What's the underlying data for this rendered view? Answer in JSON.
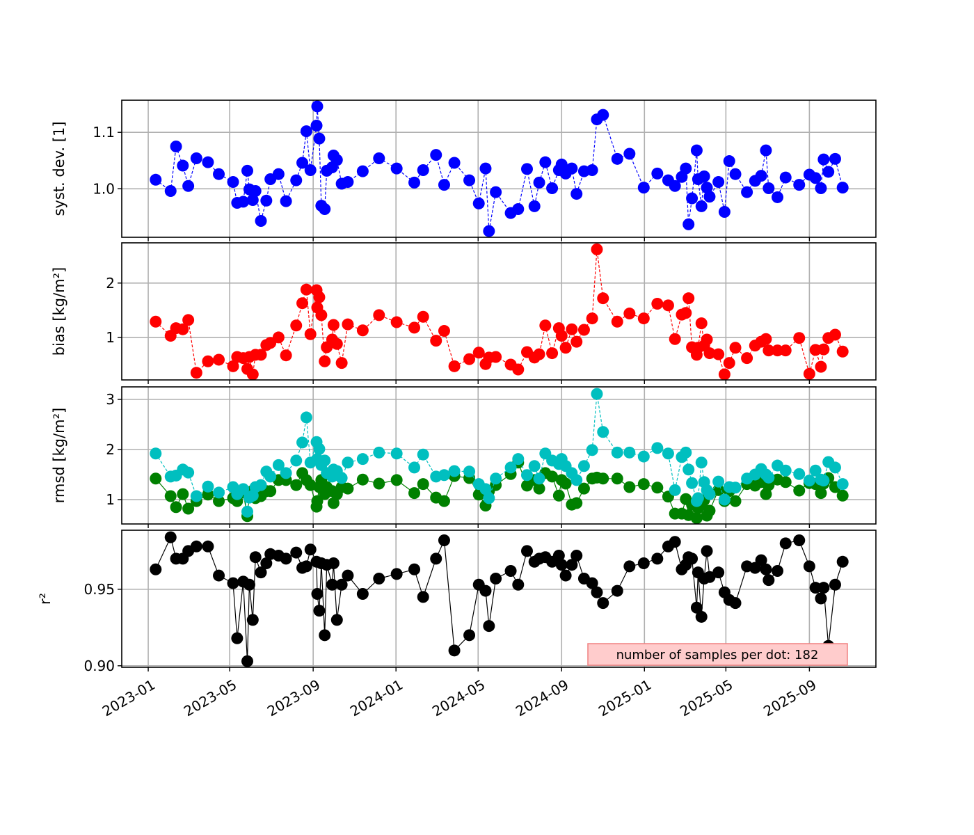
{
  "chart_data": {
    "type": "line",
    "x_unit": "days since 2023-01-01",
    "x_ticks": [
      {
        "day": 0,
        "label": "2023-01"
      },
      {
        "day": 120,
        "label": "2023-05"
      },
      {
        "day": 243,
        "label": "2023-09"
      },
      {
        "day": 365,
        "label": "2024-01"
      },
      {
        "day": 486,
        "label": "2024-05"
      },
      {
        "day": 609,
        "label": "2024-09"
      },
      {
        "day": 731,
        "label": "2025-01"
      },
      {
        "day": 851,
        "label": "2025-05"
      },
      {
        "day": 974,
        "label": "2025-09"
      }
    ],
    "xlim": [
      -39,
      1072
    ],
    "grid": true,
    "x": [
      11,
      33,
      41,
      51,
      59,
      71,
      88,
      104,
      125,
      131,
      140,
      146,
      149,
      154,
      158,
      166,
      174,
      180,
      192,
      203,
      218,
      227,
      233,
      239,
      248,
      249,
      252,
      255,
      260,
      263,
      271,
      273,
      278,
      285,
      294,
      316,
      340,
      366,
      392,
      405,
      424,
      436,
      451,
      473,
      487,
      497,
      502,
      512,
      534,
      545,
      558,
      569,
      576,
      585,
      595,
      605,
      609,
      615,
      624,
      631,
      642,
      654,
      661,
      670,
      691,
      709,
      730,
      750,
      766,
      776,
      786,
      792,
      796,
      801,
      808,
      810,
      815,
      819,
      823,
      827,
      840,
      849,
      856,
      865,
      882,
      894,
      903,
      910,
      914,
      927,
      939,
      959,
      974,
      983,
      991,
      995,
      1002,
      1012,
      1023
    ],
    "panels": [
      {
        "ylabel": "syst. dev. [1]",
        "ylim": [
          0.914,
          1.157
        ],
        "yticks": [
          {
            "v": 1.0,
            "label": "1.0"
          },
          {
            "v": 1.1,
            "label": "1.1"
          }
        ],
        "series": [
          {
            "name": "syst. dev.",
            "color": "#0000ff",
            "dash": true,
            "values": [
              1.016,
              0.996,
              1.075,
              1.041,
              1.005,
              1.054,
              1.047,
              1.026,
              1.012,
              0.975,
              0.977,
              1.032,
              0.999,
              0.98,
              0.996,
              0.943,
              0.979,
              1.017,
              1.026,
              0.978,
              1.015,
              1.046,
              1.102,
              1.033,
              1.112,
              1.146,
              1.089,
              0.97,
              0.964,
              1.032,
              1.038,
              1.059,
              1.051,
              1.009,
              1.012,
              1.031,
              1.054,
              1.036,
              1.011,
              1.033,
              1.06,
              1.007,
              1.046,
              1.015,
              0.974,
              1.036,
              0.925,
              0.994,
              0.957,
              0.964,
              1.035,
              0.969,
              1.011,
              1.047,
              1.001,
              1.033,
              1.043,
              1.027,
              1.036,
              0.991,
              1.031,
              1.033,
              1.123,
              1.131,
              1.053,
              1.062,
              1.002,
              1.027,
              1.015,
              1.005,
              1.021,
              1.036,
              0.937,
              0.983,
              1.068,
              1.017,
              0.969,
              1.022,
              1.002,
              0.986,
              1.012,
              0.959,
              1.049,
              1.026,
              0.994,
              1.014,
              1.023,
              1.068,
              1.001,
              0.985,
              1.02,
              1.007,
              1.025,
              1.019,
              1.001,
              1.052,
              1.03,
              1.053,
              1.002
            ]
          }
        ]
      },
      {
        "ylabel": "bias [kg/m²]",
        "ylim": [
          0.218,
          2.74
        ],
        "yticks": [
          {
            "v": 1,
            "label": "1"
          },
          {
            "v": 2,
            "label": "2"
          }
        ],
        "series": [
          {
            "name": "bias",
            "color": "#ff0000",
            "dash": true,
            "values": [
              1.29,
              1.03,
              1.17,
              1.15,
              1.32,
              0.35,
              0.56,
              0.59,
              0.47,
              0.64,
              0.62,
              0.42,
              0.64,
              0.32,
              0.68,
              0.68,
              0.86,
              0.9,
              1.0,
              0.67,
              1.22,
              1.63,
              1.88,
              1.06,
              1.87,
              1.55,
              1.74,
              1.41,
              0.56,
              0.82,
              0.96,
              1.23,
              0.88,
              0.53,
              1.24,
              1.13,
              1.41,
              1.28,
              1.18,
              1.38,
              0.94,
              1.12,
              0.47,
              0.6,
              0.72,
              0.51,
              0.63,
              0.64,
              0.5,
              0.41,
              0.73,
              0.63,
              0.69,
              1.22,
              0.71,
              1.17,
              1.03,
              0.81,
              1.15,
              0.92,
              1.14,
              1.35,
              2.62,
              1.72,
              1.29,
              1.44,
              1.35,
              1.62,
              1.59,
              0.97,
              1.42,
              1.45,
              1.72,
              0.82,
              0.68,
              0.81,
              1.26,
              0.85,
              0.96,
              0.71,
              0.69,
              0.32,
              0.53,
              0.81,
              0.62,
              0.85,
              0.92,
              0.97,
              0.76,
              0.76,
              0.76,
              0.99,
              0.33,
              0.77,
              0.46,
              0.78,
              0.99,
              1.05,
              0.74
            ]
          }
        ]
      },
      {
        "ylabel": "rmsd [kg/m²]",
        "ylim": [
          0.514,
          3.25
        ],
        "yticks": [
          {
            "v": 1,
            "label": "1"
          },
          {
            "v": 2,
            "label": "2"
          },
          {
            "v": 3,
            "label": "3"
          }
        ],
        "series": [
          {
            "name": "rmsd (green)",
            "color": "#008000",
            "dash": false,
            "values": [
              1.42,
              1.07,
              0.85,
              1.11,
              0.82,
              0.97,
              1.1,
              0.97,
              1.03,
              0.97,
              1.14,
              0.67,
              1.08,
              1.18,
              1.03,
              1.07,
              1.17,
              1.17,
              1.39,
              1.39,
              1.29,
              1.53,
              1.39,
              1.29,
              0.86,
              0.97,
              1.25,
              1.39,
              1.11,
              1.25,
              1.17,
              0.93,
              1.11,
              1.25,
              1.22,
              1.4,
              1.32,
              1.39,
              1.13,
              1.31,
              1.04,
              0.97,
              1.47,
              1.43,
              1.1,
              0.88,
              1.17,
              1.29,
              1.51,
              1.74,
              1.28,
              1.39,
              1.22,
              1.53,
              1.46,
              1.08,
              1.39,
              1.32,
              0.9,
              0.93,
              1.22,
              1.42,
              1.44,
              1.42,
              1.42,
              1.25,
              1.31,
              1.24,
              1.06,
              0.72,
              0.72,
              1.01,
              0.69,
              0.9,
              0.63,
              0.83,
              0.89,
              0.99,
              0.68,
              0.78,
              1.19,
              0.97,
              1.17,
              0.97,
              1.31,
              1.28,
              1.35,
              1.11,
              1.29,
              1.4,
              1.35,
              1.18,
              1.33,
              1.31,
              1.13,
              1.32,
              1.43,
              1.25,
              1.08
            ]
          },
          {
            "name": "rmsd (cyan)",
            "color": "#00bfbf",
            "dash": true,
            "values": [
              1.92,
              1.46,
              1.48,
              1.6,
              1.54,
              1.07,
              1.26,
              1.14,
              1.25,
              1.11,
              1.21,
              0.76,
              1.04,
              1.08,
              1.25,
              1.29,
              1.56,
              1.46,
              1.69,
              1.53,
              1.78,
              2.14,
              2.64,
              1.74,
              2.15,
              1.81,
              2.01,
              1.69,
              1.78,
              1.53,
              1.46,
              1.6,
              1.57,
              1.43,
              1.74,
              1.81,
              1.94,
              1.92,
              1.64,
              1.9,
              1.46,
              1.49,
              1.57,
              1.56,
              1.31,
              1.21,
              1.03,
              1.42,
              1.64,
              1.81,
              1.49,
              1.67,
              1.42,
              1.92,
              1.78,
              1.71,
              1.81,
              1.67,
              1.53,
              1.39,
              1.67,
              1.99,
              3.11,
              2.35,
              1.94,
              1.94,
              1.86,
              2.03,
              1.92,
              1.19,
              1.85,
              1.94,
              1.6,
              1.33,
              0.97,
              1.03,
              1.74,
              1.35,
              1.19,
              1.11,
              1.36,
              1.0,
              1.25,
              1.24,
              1.42,
              1.5,
              1.61,
              1.5,
              1.44,
              1.68,
              1.58,
              1.51,
              1.38,
              1.58,
              1.4,
              1.38,
              1.75,
              1.64,
              1.31
            ]
          }
        ]
      },
      {
        "ylabel": "r²",
        "ylim": [
          0.899,
          0.9886
        ],
        "yticks": [
          {
            "v": 0.9,
            "label": "0.90"
          },
          {
            "v": 0.95,
            "label": "0.95"
          }
        ],
        "series": [
          {
            "name": "r²",
            "color": "#000000",
            "dash": false,
            "values": [
              0.963,
              0.984,
              0.97,
              0.97,
              0.975,
              0.978,
              0.978,
              0.959,
              0.954,
              0.918,
              0.955,
              0.903,
              0.953,
              0.93,
              0.971,
              0.961,
              0.967,
              0.973,
              0.972,
              0.97,
              0.974,
              0.964,
              0.965,
              0.976,
              0.968,
              0.947,
              0.936,
              0.967,
              0.92,
              0.966,
              0.953,
              0.967,
              0.93,
              0.953,
              0.959,
              0.947,
              0.957,
              0.96,
              0.963,
              0.945,
              0.97,
              0.982,
              0.91,
              0.92,
              0.953,
              0.949,
              0.926,
              0.957,
              0.962,
              0.953,
              0.975,
              0.968,
              0.97,
              0.971,
              0.968,
              0.972,
              0.966,
              0.959,
              0.966,
              0.972,
              0.957,
              0.954,
              0.948,
              0.941,
              0.949,
              0.965,
              0.967,
              0.97,
              0.978,
              0.981,
              0.963,
              0.966,
              0.971,
              0.97,
              0.938,
              0.961,
              0.932,
              0.957,
              0.975,
              0.958,
              0.961,
              0.948,
              0.943,
              0.941,
              0.965,
              0.964,
              0.969,
              0.963,
              0.956,
              0.962,
              0.98,
              0.982,
              0.965,
              0.951,
              0.944,
              0.951,
              0.913,
              0.953,
              0.968
            ]
          }
        ],
        "annotation": "number of samples per dot: 182"
      }
    ]
  }
}
